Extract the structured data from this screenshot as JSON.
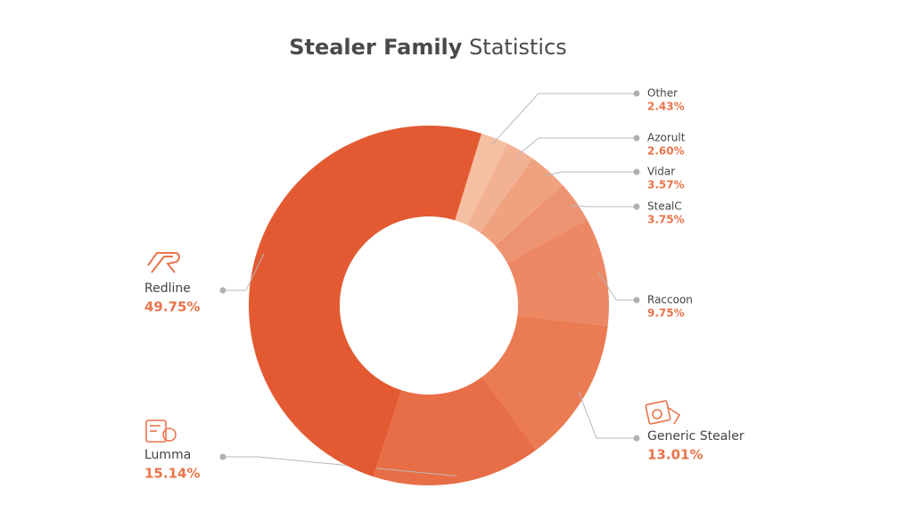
{
  "chart_data": {
    "type": "donut",
    "title": {
      "bold": "Stealer Family",
      "regular": "Statistics"
    },
    "categories": [
      "Other",
      "Azorult",
      "Vidar",
      "StealC",
      "Raccoon",
      "Generic Stealer",
      "Lumma",
      "Redline"
    ],
    "values": [
      2.43,
      2.6,
      3.57,
      3.75,
      9.75,
      13.01,
      15.14,
      49.75
    ],
    "value_labels": [
      "2.43%",
      "2.60%",
      "3.57%",
      "3.75%",
      "9.75%",
      "13.01%",
      "15.14%",
      "49.75%"
    ],
    "colors": [
      "#f5c0a2",
      "#f3b193",
      "#f0a27f",
      "#ee9372",
      "#ec8863",
      "#ea7b52",
      "#e86e47",
      "#e35a32"
    ]
  }
}
